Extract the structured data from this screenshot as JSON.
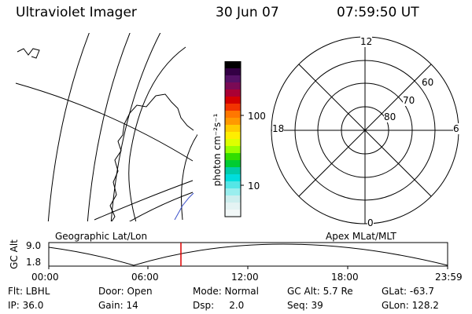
{
  "header": {
    "title": "Ultraviolet Imager",
    "date": "30 Jun 07",
    "time": "07:59:50 UT"
  },
  "colorbar": {
    "unit_label": "photon cm⁻²s⁻¹",
    "ticks": [
      "100",
      "10"
    ],
    "colors": [
      "#000000",
      "#330044",
      "#551166",
      "#7a0a55",
      "#aa0033",
      "#d40000",
      "#f23300",
      "#ff7700",
      "#ff9900",
      "#ffcc00",
      "#ffee00",
      "#ddff00",
      "#99ff00",
      "#33dd00",
      "#00cc33",
      "#00ccaa",
      "#00dddd",
      "#55e6e6",
      "#99eeee",
      "#cceeee",
      "#e4f3f3",
      "#f2f8f8"
    ]
  },
  "polar_plot": {
    "mlt_labels": {
      "top": "12",
      "right": "6",
      "bottom": "0",
      "left": "18"
    },
    "lat_labels": [
      "60",
      "70",
      "80"
    ]
  },
  "timeline": {
    "left_caption": "Geographic Lat/Lon",
    "right_caption": "Apex MLat/MLT",
    "ylabel": "GC Alt",
    "y_ticks": [
      "9.0",
      "1.8"
    ],
    "x_ticks": [
      "00:00",
      "06:00",
      "12:00",
      "18:00",
      "23:59"
    ],
    "current_time_color": "#dd0000"
  },
  "status": {
    "flt": "Flt: LBHL",
    "ip": "IP: 36.0",
    "door": "Door: Open",
    "gain": "Gain: 14",
    "mode": "Mode: Normal",
    "dsp": "Dsp:     2.0",
    "gcalt": "GC Alt: 5.7 Re",
    "seq": "Seq: 39",
    "glat": "GLat: -63.7",
    "glon": "GLon: 128.2"
  }
}
